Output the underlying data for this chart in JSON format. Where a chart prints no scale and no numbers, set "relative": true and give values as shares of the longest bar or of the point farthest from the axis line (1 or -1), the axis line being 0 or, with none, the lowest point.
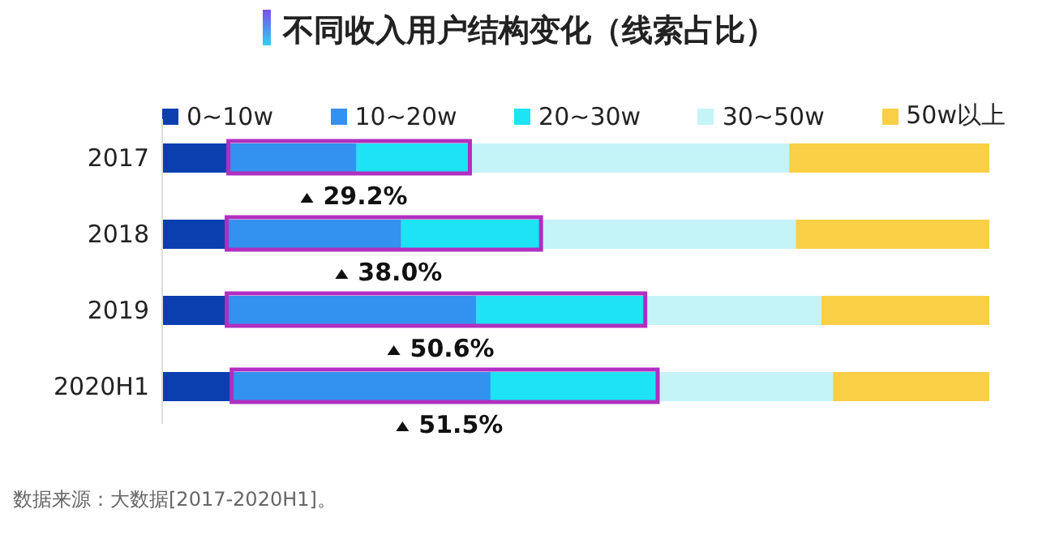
{
  "chart_data": {
    "type": "bar",
    "orientation": "horizontal",
    "stacked": true,
    "relative": true,
    "title": "不同收入用户结构变化（线索占比）",
    "categories": [
      "2017",
      "2018",
      "2019",
      "2020H1"
    ],
    "legend": "top",
    "series": [
      {
        "name": "0~10w",
        "color": "#0b3fb0",
        "values": [
          0.08,
          0.078,
          0.078,
          0.084
        ]
      },
      {
        "name": "10~20w",
        "color": "#3391f0",
        "values": [
          0.155,
          0.211,
          0.302,
          0.313
        ]
      },
      {
        "name": "20~30w",
        "color": "#1de3f5",
        "values": [
          0.137,
          0.169,
          0.204,
          0.202
        ]
      },
      {
        "name": "30~50w",
        "color": "#c4f4f8",
        "values": [
          0.386,
          0.308,
          0.213,
          0.212
        ]
      },
      {
        "name": "50w以上",
        "color": "#f9cf45",
        "values": [
          0.242,
          0.234,
          0.203,
          0.189
        ]
      }
    ],
    "annotations": [
      "29.2%",
      "38.0%",
      "50.6%",
      "51.5%",
      "数据来源：大数据[2017-2020H1]。"
    ]
  }
}
